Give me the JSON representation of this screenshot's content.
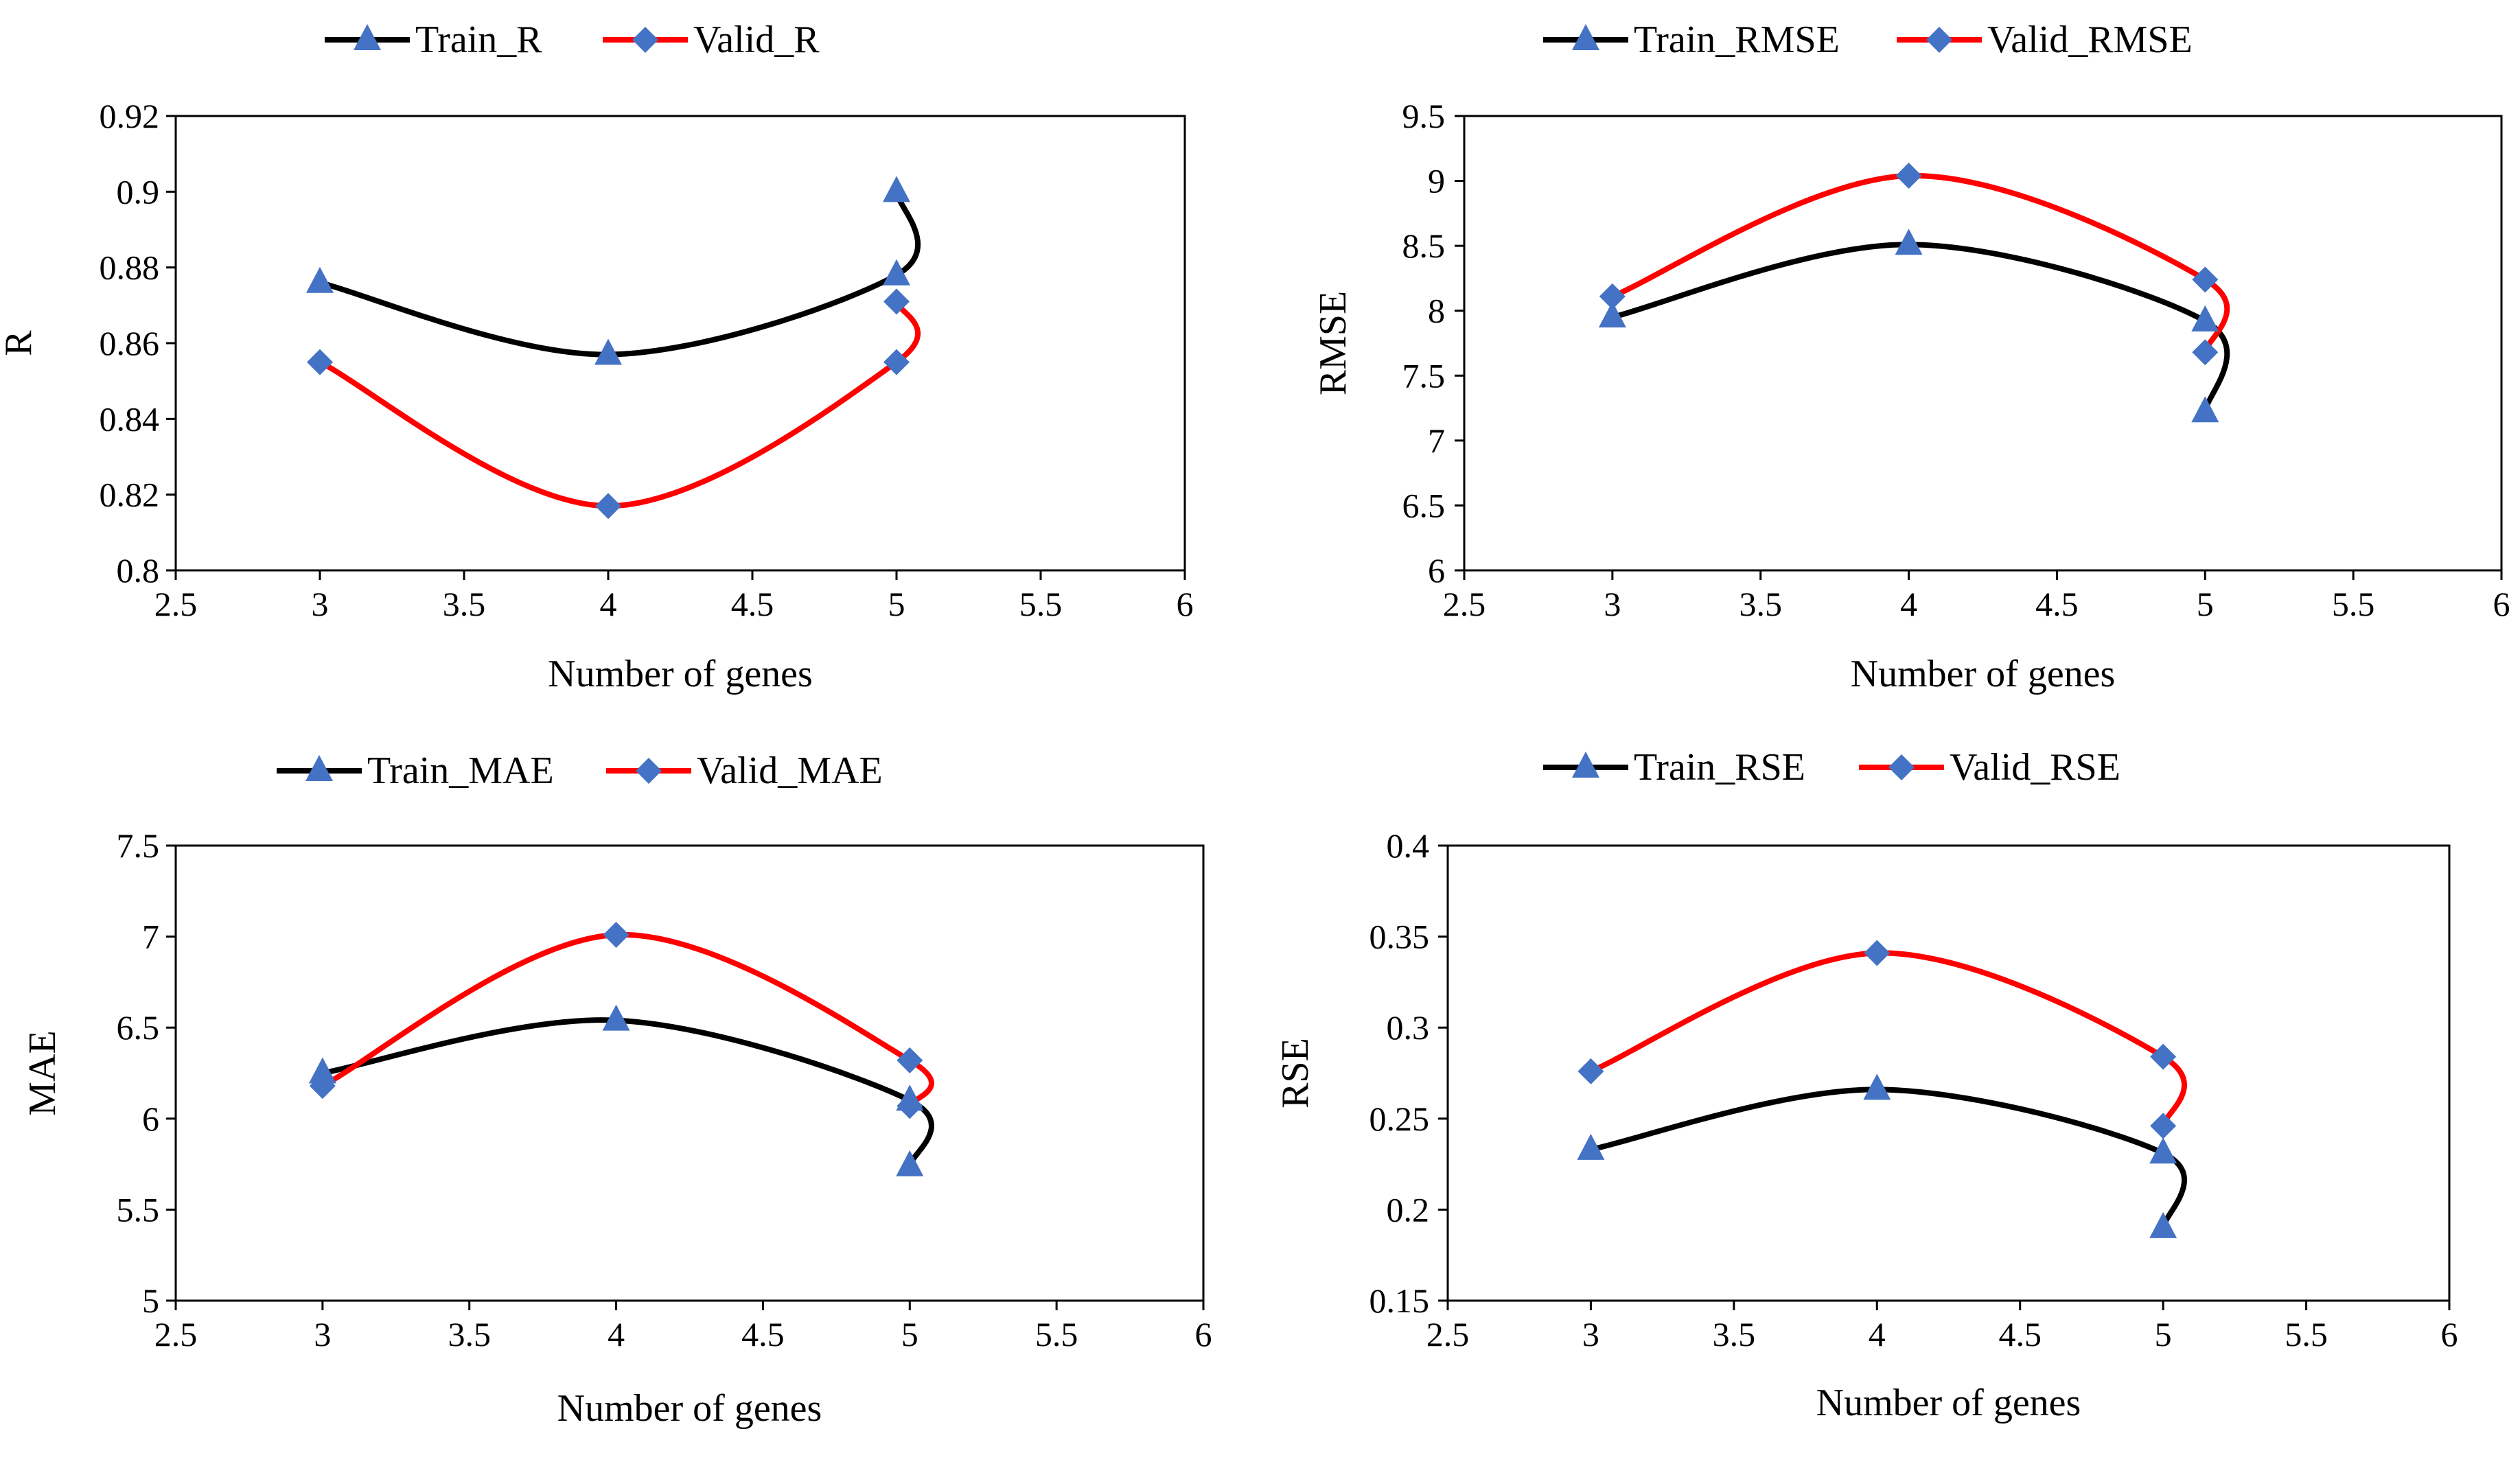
{
  "colors": {
    "train_line": "#000000",
    "valid_line": "#ff0000",
    "marker": "#4472c4",
    "axis": "#000000",
    "background": "#ffffff"
  },
  "chart_data": [
    {
      "type": "scatter",
      "title": "",
      "xlabel": "Number of genes",
      "ylabel": "R",
      "xlim": [
        2.5,
        6
      ],
      "ylim": [
        0.8,
        0.92
      ],
      "xticks": [
        "2.5",
        "3",
        "3.5",
        "4",
        "4.5",
        "5",
        "5.5",
        "6"
      ],
      "yticks": [
        "0.8",
        "0.82",
        "0.84",
        "0.86",
        "0.88",
        "0.9",
        "0.92"
      ],
      "grid": false,
      "legend_position": "top-center",
      "series": [
        {
          "name": "Train_R",
          "marker": "triangle",
          "line_color": "#000000",
          "x": [
            3,
            4,
            5,
            5
          ],
          "y": [
            0.876,
            0.857,
            0.878,
            0.9
          ]
        },
        {
          "name": "Valid_R",
          "marker": "diamond",
          "line_color": "#ff0000",
          "x": [
            3,
            4,
            5,
            5
          ],
          "y": [
            0.855,
            0.817,
            0.855,
            0.871
          ]
        }
      ]
    },
    {
      "type": "scatter",
      "title": "",
      "xlabel": "Number of genes",
      "ylabel": "RMSE",
      "xlim": [
        2.5,
        6
      ],
      "ylim": [
        6,
        9.5
      ],
      "xticks": [
        "2.5",
        "3",
        "3.5",
        "4",
        "4.5",
        "5",
        "5.5",
        "6"
      ],
      "yticks": [
        "6",
        "6.5",
        "7",
        "7.5",
        "8",
        "8.5",
        "9",
        "9.5"
      ],
      "grid": false,
      "legend_position": "top-center",
      "series": [
        {
          "name": "Train_RMSE",
          "marker": "triangle",
          "line_color": "#000000",
          "x": [
            3,
            4,
            5,
            5
          ],
          "y": [
            7.95,
            8.51,
            7.92,
            7.22
          ]
        },
        {
          "name": "Valid_RMSE",
          "marker": "diamond",
          "line_color": "#ff0000",
          "x": [
            3,
            4,
            5,
            5
          ],
          "y": [
            8.11,
            9.04,
            8.24,
            7.68
          ]
        }
      ]
    },
    {
      "type": "scatter",
      "title": "",
      "xlabel": "Number of genes",
      "ylabel": "MAE",
      "xlim": [
        2.5,
        6
      ],
      "ylim": [
        5,
        7.5
      ],
      "xticks": [
        "2.5",
        "3",
        "3.5",
        "4",
        "4.5",
        "5",
        "5.5",
        "6"
      ],
      "yticks": [
        "5",
        "5.5",
        "6",
        "6.5",
        "7",
        "7.5"
      ],
      "grid": false,
      "legend_position": "top-center",
      "series": [
        {
          "name": "Train_MAE",
          "marker": "triangle",
          "line_color": "#000000",
          "x": [
            3,
            4,
            5,
            5
          ],
          "y": [
            6.25,
            6.54,
            6.1,
            5.74
          ]
        },
        {
          "name": "Valid_MAE",
          "marker": "diamond",
          "line_color": "#ff0000",
          "x": [
            3,
            4,
            5,
            5
          ],
          "y": [
            6.18,
            7.01,
            6.32,
            6.07
          ]
        }
      ]
    },
    {
      "type": "scatter",
      "title": "",
      "xlabel": "Number of genes",
      "ylabel": "RSE",
      "xlim": [
        2.5,
        6
      ],
      "ylim": [
        0.15,
        0.4
      ],
      "xticks": [
        "2.5",
        "3",
        "3.5",
        "4",
        "4.5",
        "5",
        "5.5",
        "6"
      ],
      "yticks": [
        "0.15",
        "0.2",
        "0.25",
        "0.3",
        "0.35",
        "0.4"
      ],
      "grid": false,
      "legend_position": "top-center",
      "series": [
        {
          "name": "Train_RSE",
          "marker": "triangle",
          "line_color": "#000000",
          "x": [
            3,
            4,
            5,
            5
          ],
          "y": [
            0.233,
            0.266,
            0.231,
            0.19
          ]
        },
        {
          "name": "Valid_RSE",
          "marker": "diamond",
          "line_color": "#ff0000",
          "x": [
            3,
            4,
            5,
            5
          ],
          "y": [
            0.276,
            0.341,
            0.284,
            0.246
          ]
        }
      ]
    }
  ]
}
